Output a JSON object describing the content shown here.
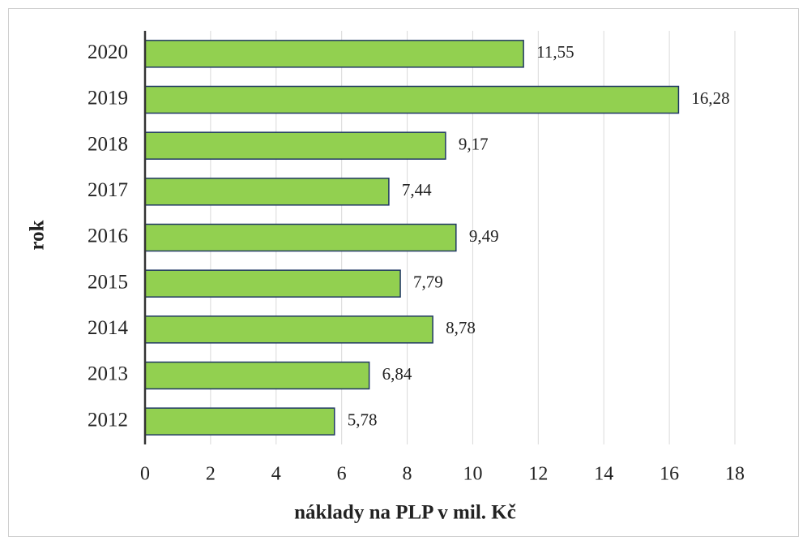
{
  "chart_data": {
    "type": "bar",
    "orientation": "horizontal",
    "x_label": "náklady na PLP v mil. Kč",
    "y_label": "rok",
    "categories": [
      "2020",
      "2019",
      "2018",
      "2017",
      "2016",
      "2015",
      "2014",
      "2013",
      "2012"
    ],
    "values": [
      11.55,
      16.28,
      9.17,
      7.44,
      9.49,
      7.79,
      8.78,
      6.84,
      5.78
    ],
    "value_labels": [
      "11,55",
      "16,28",
      "9,17",
      "7,44",
      "9,49",
      "7,79",
      "8,78",
      "6,84",
      "5,78"
    ],
    "color": "#92d050",
    "edge_color": "#203864",
    "xlim": [
      0,
      18
    ],
    "xticks": [
      0,
      2,
      4,
      6,
      8,
      10,
      12,
      14,
      16,
      18
    ],
    "grid": true
  }
}
